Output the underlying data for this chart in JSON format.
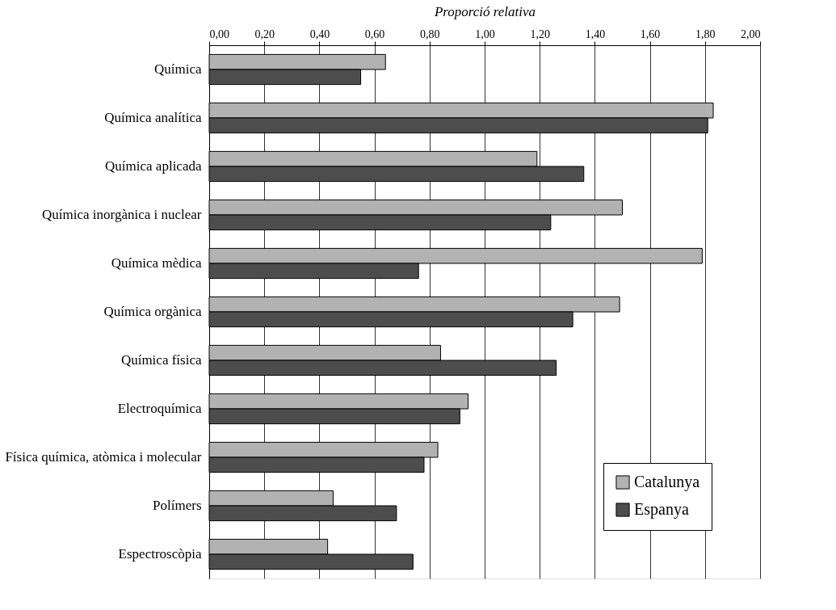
{
  "chart_data": {
    "type": "bar",
    "orientation": "horizontal",
    "xlabel": "Proporció relativa",
    "categories": [
      "Química",
      "Química analítica",
      "Química aplicada",
      "Química inorgànica i nuclear",
      "Química mèdica",
      "Química orgànica",
      "Química física",
      "Electroquímica",
      "Física química, atòmica i molecular",
      "Polímers",
      "Espectroscòpia"
    ],
    "series": [
      {
        "name": "Catalunya",
        "color": "#b2b2b2",
        "values": [
          0.64,
          1.83,
          1.19,
          1.5,
          1.79,
          1.49,
          0.84,
          0.94,
          0.83,
          0.45,
          0.43
        ]
      },
      {
        "name": "Espanya",
        "color": "#4d4d4d",
        "values": [
          0.55,
          1.81,
          1.36,
          1.24,
          0.76,
          1.32,
          1.26,
          0.91,
          0.78,
          0.68,
          0.74
        ]
      }
    ],
    "xlim": [
      0,
      2
    ],
    "xticks": [
      {
        "value": 0,
        "label": "0,00"
      },
      {
        "value": 0.2,
        "label": "0,20"
      },
      {
        "value": 0.4,
        "label": "0,40"
      },
      {
        "value": 0.6,
        "label": "0,60"
      },
      {
        "value": 0.8,
        "label": "0,80"
      },
      {
        "value": 1,
        "label": "1,00"
      },
      {
        "value": 1.2,
        "label": "1,20"
      },
      {
        "value": 1.4,
        "label": "1,40"
      },
      {
        "value": 1.6,
        "label": "1,60"
      },
      {
        "value": 1.8,
        "label": "1,80"
      },
      {
        "value": 2,
        "label": "2,00"
      }
    ],
    "grid": "x",
    "legend": "bottom right"
  }
}
